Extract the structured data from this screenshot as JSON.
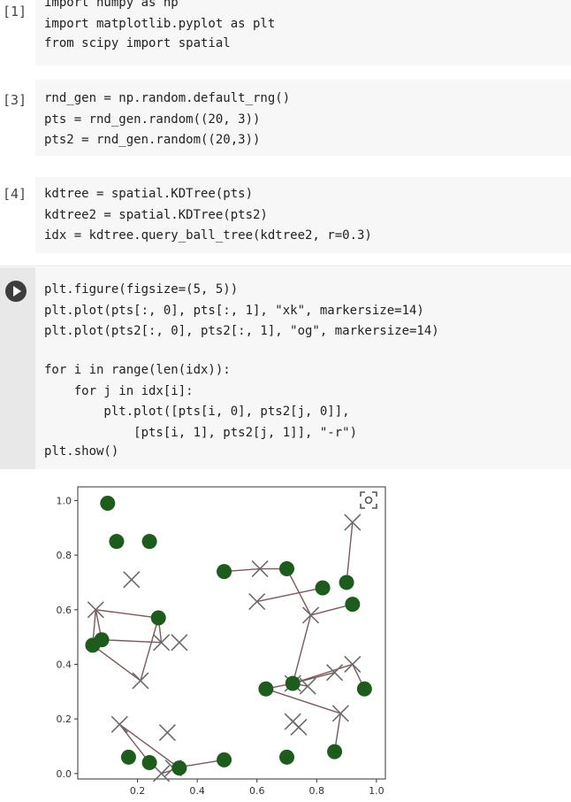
{
  "cells": [
    {
      "prompt": "[1]",
      "lines": [
        "import numpy as np",
        "import matplotlib.pyplot as plt",
        "from scipy import spatial"
      ]
    },
    {
      "prompt": "[3]",
      "lines": [
        "rnd_gen = np.random.default_rng()",
        "pts = rnd_gen.random((20, 3))",
        "pts2 = rnd_gen.random((20,3))"
      ]
    },
    {
      "prompt": "[4]",
      "lines": [
        "kdtree = spatial.KDTree(pts)",
        "kdtree2 = spatial.KDTree(pts2)",
        "idx = kdtree.query_ball_tree(kdtree2, r=0.3)"
      ]
    },
    {
      "prompt": "",
      "lines": [
        "plt.figure(figsize=(5, 5))",
        "plt.plot(pts[:, 0], pts[:, 1], \"xk\", markersize=14)",
        "plt.plot(pts2[:, 0], pts2[:, 1], \"og\", markersize=14)",
        "",
        "for i in range(len(idx)):",
        "    for j in idx[i]:",
        "        plt.plot([pts[i, 0], pts2[j, 0]],",
        "            [pts[i, 1], pts2[j, 1]], \"-r\")",
        "plt.show()"
      ]
    }
  ],
  "run_button_icon": "play-icon",
  "capture_icon": "screenshot-capture-icon",
  "chart_data": {
    "type": "scatter",
    "xlim": [
      0.0,
      1.03
    ],
    "ylim": [
      -0.02,
      1.05
    ],
    "x_ticks": [
      "0.2",
      "0.4",
      "0.6",
      "0.8",
      "1.0"
    ],
    "x_tick_values": [
      0.2,
      0.4,
      0.6,
      0.8,
      1.0
    ],
    "y_ticks": [
      "0.0",
      "0.2",
      "0.4",
      "0.6",
      "0.8",
      "1.0"
    ],
    "y_tick_values": [
      0.0,
      0.2,
      0.4,
      0.6,
      0.8,
      1.0
    ],
    "grid": false,
    "series": [
      {
        "marker": "x",
        "color": "#6b6b6b",
        "points": [
          [
            0.06,
            0.6
          ],
          [
            0.18,
            0.71
          ],
          [
            0.28,
            0.48
          ],
          [
            0.34,
            0.48
          ],
          [
            0.21,
            0.34
          ],
          [
            0.14,
            0.18
          ],
          [
            0.3,
            0.15
          ],
          [
            0.28,
            0.0
          ],
          [
            0.32,
            0.02
          ],
          [
            0.61,
            0.75
          ],
          [
            0.6,
            0.63
          ],
          [
            0.78,
            0.58
          ],
          [
            0.92,
            0.92
          ],
          [
            0.92,
            0.4
          ],
          [
            0.86,
            0.37
          ],
          [
            0.72,
            0.33
          ],
          [
            0.77,
            0.32
          ],
          [
            0.72,
            0.19
          ],
          [
            0.74,
            0.17
          ],
          [
            0.88,
            0.22
          ]
        ]
      },
      {
        "marker": "o",
        "color": "#1e5c1e",
        "points": [
          [
            0.1,
            0.99
          ],
          [
            0.13,
            0.85
          ],
          [
            0.24,
            0.85
          ],
          [
            0.27,
            0.57
          ],
          [
            0.08,
            0.49
          ],
          [
            0.05,
            0.47
          ],
          [
            0.17,
            0.06
          ],
          [
            0.24,
            0.04
          ],
          [
            0.34,
            0.02
          ],
          [
            0.49,
            0.05
          ],
          [
            0.49,
            0.74
          ],
          [
            0.7,
            0.75
          ],
          [
            0.82,
            0.68
          ],
          [
            0.9,
            0.7
          ],
          [
            0.92,
            0.62
          ],
          [
            0.63,
            0.31
          ],
          [
            0.72,
            0.33
          ],
          [
            0.96,
            0.31
          ],
          [
            0.7,
            0.06
          ],
          [
            0.86,
            0.08
          ]
        ]
      }
    ],
    "links": [
      [
        [
          0.06,
          0.6
        ],
        [
          0.27,
          0.57
        ]
      ],
      [
        [
          0.06,
          0.6
        ],
        [
          0.05,
          0.47
        ]
      ],
      [
        [
          0.06,
          0.6
        ],
        [
          0.08,
          0.49
        ]
      ],
      [
        [
          0.21,
          0.34
        ],
        [
          0.05,
          0.47
        ]
      ],
      [
        [
          0.21,
          0.34
        ],
        [
          0.27,
          0.57
        ]
      ],
      [
        [
          0.28,
          0.48
        ],
        [
          0.27,
          0.57
        ]
      ],
      [
        [
          0.28,
          0.48
        ],
        [
          0.08,
          0.49
        ]
      ],
      [
        [
          0.14,
          0.18
        ],
        [
          0.24,
          0.04
        ]
      ],
      [
        [
          0.14,
          0.18
        ],
        [
          0.34,
          0.02
        ]
      ],
      [
        [
          0.28,
          0.0
        ],
        [
          0.34,
          0.02
        ]
      ],
      [
        [
          0.32,
          0.02
        ],
        [
          0.49,
          0.05
        ]
      ],
      [
        [
          0.61,
          0.75
        ],
        [
          0.49,
          0.74
        ]
      ],
      [
        [
          0.61,
          0.75
        ],
        [
          0.7,
          0.75
        ]
      ],
      [
        [
          0.6,
          0.63
        ],
        [
          0.82,
          0.68
        ]
      ],
      [
        [
          0.78,
          0.58
        ],
        [
          0.7,
          0.75
        ]
      ],
      [
        [
          0.78,
          0.58
        ],
        [
          0.92,
          0.62
        ]
      ],
      [
        [
          0.78,
          0.58
        ],
        [
          0.72,
          0.33
        ]
      ],
      [
        [
          0.92,
          0.92
        ],
        [
          0.9,
          0.7
        ]
      ],
      [
        [
          0.92,
          0.4
        ],
        [
          0.96,
          0.31
        ]
      ],
      [
        [
          0.92,
          0.4
        ],
        [
          0.72,
          0.33
        ]
      ],
      [
        [
          0.86,
          0.37
        ],
        [
          0.72,
          0.33
        ]
      ],
      [
        [
          0.88,
          0.22
        ],
        [
          0.63,
          0.31
        ]
      ],
      [
        [
          0.88,
          0.22
        ],
        [
          0.86,
          0.08
        ]
      ],
      [
        [
          0.72,
          0.33
        ],
        [
          0.63,
          0.31
        ]
      ],
      [
        [
          0.77,
          0.32
        ],
        [
          0.72,
          0.33
        ]
      ]
    ]
  }
}
